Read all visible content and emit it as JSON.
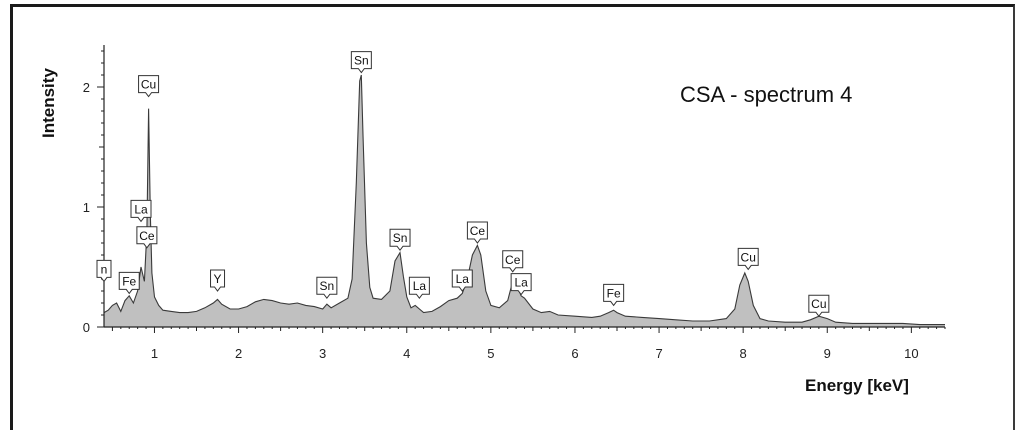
{
  "chart_data": {
    "type": "area",
    "title": "CSA - spectrum 4",
    "xlabel": "Energy [keV]",
    "ylabel": "Intensity",
    "xlim": [
      0.4,
      10.4
    ],
    "ylim": [
      0,
      2.35
    ],
    "x_ticks": [
      1,
      2,
      3,
      4,
      5,
      6,
      7,
      8,
      9,
      10
    ],
    "y_ticks": [
      0,
      1,
      2
    ],
    "fill_color": "#c0c0c0",
    "line_color": "#3a3a3a",
    "series": [
      {
        "x": [
          0.4,
          0.45,
          0.5,
          0.55,
          0.6,
          0.65,
          0.7,
          0.75,
          0.8,
          0.84,
          0.88,
          0.91,
          0.93,
          0.95,
          0.97,
          1.0,
          1.05,
          1.1,
          1.2,
          1.3,
          1.4,
          1.5,
          1.6,
          1.7,
          1.75,
          1.8,
          1.9,
          2.0,
          2.1,
          2.2,
          2.3,
          2.4,
          2.5,
          2.6,
          2.7,
          2.8,
          2.9,
          3.0,
          3.05,
          3.1,
          3.2,
          3.3,
          3.35,
          3.4,
          3.44,
          3.46,
          3.48,
          3.52,
          3.56,
          3.6,
          3.7,
          3.8,
          3.86,
          3.92,
          3.96,
          4.0,
          4.05,
          4.1,
          4.15,
          4.2,
          4.3,
          4.4,
          4.5,
          4.6,
          4.66,
          4.72,
          4.78,
          4.84,
          4.88,
          4.94,
          5.0,
          5.1,
          5.2,
          5.26,
          5.32,
          5.36,
          5.4,
          5.5,
          5.6,
          5.7,
          5.8,
          6.0,
          6.2,
          6.3,
          6.4,
          6.46,
          6.5,
          6.6,
          6.8,
          7.0,
          7.2,
          7.4,
          7.6,
          7.8,
          7.9,
          7.96,
          8.02,
          8.06,
          8.12,
          8.2,
          8.3,
          8.5,
          8.7,
          8.8,
          8.9,
          9.0,
          9.1,
          9.3,
          9.5,
          9.7,
          9.9,
          10.1,
          10.3,
          10.4
        ],
        "y": [
          0.12,
          0.14,
          0.18,
          0.2,
          0.13,
          0.22,
          0.26,
          0.2,
          0.3,
          0.5,
          0.38,
          0.8,
          1.82,
          0.95,
          0.45,
          0.25,
          0.18,
          0.14,
          0.13,
          0.12,
          0.12,
          0.13,
          0.16,
          0.2,
          0.23,
          0.19,
          0.15,
          0.15,
          0.17,
          0.21,
          0.23,
          0.22,
          0.2,
          0.19,
          0.2,
          0.18,
          0.17,
          0.15,
          0.19,
          0.16,
          0.2,
          0.24,
          0.4,
          1.2,
          2.05,
          2.1,
          1.6,
          0.7,
          0.33,
          0.24,
          0.23,
          0.3,
          0.55,
          0.62,
          0.42,
          0.25,
          0.16,
          0.18,
          0.15,
          0.12,
          0.13,
          0.17,
          0.22,
          0.24,
          0.28,
          0.4,
          0.6,
          0.68,
          0.6,
          0.3,
          0.18,
          0.16,
          0.22,
          0.38,
          0.33,
          0.26,
          0.24,
          0.15,
          0.12,
          0.13,
          0.1,
          0.09,
          0.08,
          0.09,
          0.12,
          0.14,
          0.12,
          0.09,
          0.08,
          0.07,
          0.06,
          0.05,
          0.05,
          0.07,
          0.15,
          0.35,
          0.45,
          0.38,
          0.18,
          0.07,
          0.05,
          0.04,
          0.04,
          0.06,
          0.09,
          0.07,
          0.04,
          0.03,
          0.03,
          0.03,
          0.03,
          0.02,
          0.02,
          0.02
        ]
      }
    ],
    "peak_labels": [
      {
        "label": "n",
        "x": 0.4,
        "y": 0.38
      },
      {
        "label": "Fe",
        "x": 0.7,
        "y": 0.28
      },
      {
        "label": "La",
        "x": 0.84,
        "y": 0.88
      },
      {
        "label": "Ce",
        "x": 0.91,
        "y": 0.66
      },
      {
        "label": "Cu",
        "x": 0.93,
        "y": 1.92
      },
      {
        "label": "Y",
        "x": 1.75,
        "y": 0.3
      },
      {
        "label": "Sn",
        "x": 3.05,
        "y": 0.24
      },
      {
        "label": "Sn",
        "x": 3.46,
        "y": 2.12
      },
      {
        "label": "Sn",
        "x": 3.92,
        "y": 0.64
      },
      {
        "label": "La",
        "x": 4.15,
        "y": 0.24
      },
      {
        "label": "La",
        "x": 4.66,
        "y": 0.3
      },
      {
        "label": "Ce",
        "x": 4.84,
        "y": 0.7
      },
      {
        "label": "Ce",
        "x": 5.26,
        "y": 0.46
      },
      {
        "label": "La",
        "x": 5.36,
        "y": 0.27
      },
      {
        "label": "Fe",
        "x": 6.46,
        "y": 0.18
      },
      {
        "label": "Cu",
        "x": 8.06,
        "y": 0.48
      },
      {
        "label": "Cu",
        "x": 8.9,
        "y": 0.09
      }
    ]
  }
}
